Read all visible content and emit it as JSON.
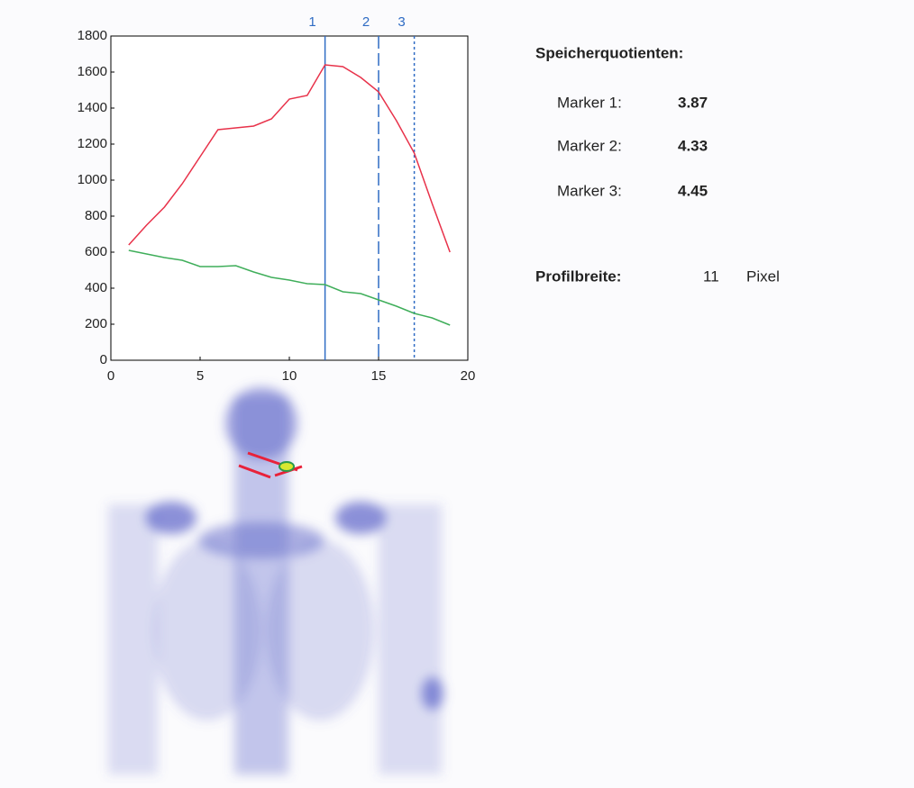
{
  "chart_data": {
    "type": "line",
    "x": [
      1,
      2,
      3,
      4,
      5,
      6,
      7,
      8,
      9,
      10,
      11,
      12,
      13,
      14,
      15,
      16,
      17,
      18,
      19
    ],
    "series": [
      {
        "color": "#e8324a",
        "values": [
          640,
          750,
          850,
          980,
          1130,
          1280,
          1290,
          1300,
          1340,
          1450,
          1470,
          1640,
          1630,
          1570,
          1490,
          1330,
          1150,
          870,
          600
        ]
      },
      {
        "color": "#3fae5a",
        "values": [
          610,
          590,
          570,
          555,
          520,
          520,
          525,
          490,
          460,
          445,
          425,
          420,
          380,
          370,
          335,
          300,
          260,
          235,
          195
        ]
      }
    ],
    "markers": [
      {
        "label": "1",
        "x": 12,
        "style": "solid"
      },
      {
        "label": "2",
        "x": 15,
        "style": "dashed"
      },
      {
        "label": "3",
        "x": 17,
        "style": "dotted"
      }
    ],
    "marker_color": "#2f6cc4",
    "xlim": [
      0,
      20
    ],
    "xticks": [
      0,
      5,
      10,
      15,
      20
    ],
    "ylim": [
      0,
      1800
    ],
    "yticks": [
      0,
      200,
      400,
      600,
      800,
      1000,
      1200,
      1400,
      1600,
      1800
    ],
    "grid": false
  },
  "panel": {
    "title": "Speicherquotienten:",
    "rows": [
      {
        "label": "Marker 1:",
        "value": 3.87
      },
      {
        "label": "Marker 2:",
        "value": 4.33
      },
      {
        "label": "Marker 3:",
        "value": 4.45
      }
    ],
    "width_label": "Profilbreite:",
    "width_value": 11,
    "width_unit": "Pixel"
  }
}
